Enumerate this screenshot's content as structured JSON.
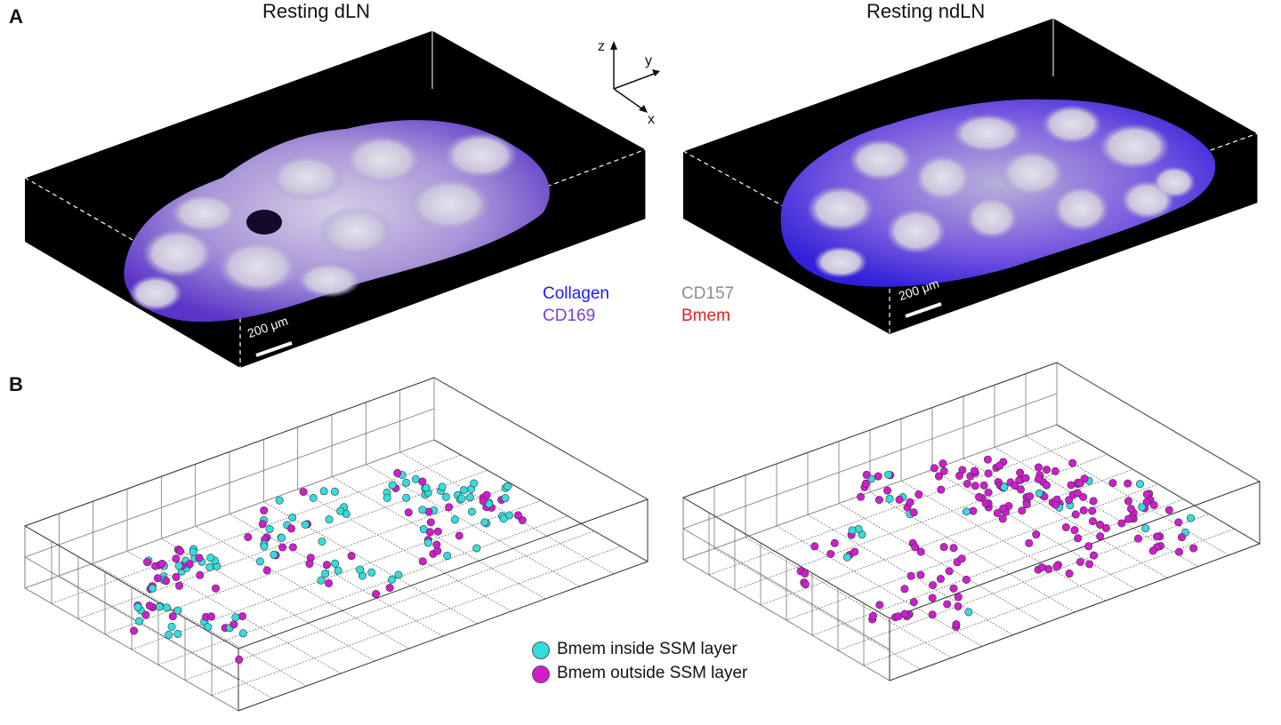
{
  "panel_a": {
    "letter": "A",
    "left_title": "Resting dLN",
    "right_title": "Resting ndLN",
    "scale_bar_left": "200 μm",
    "scale_bar_right": "200 μm",
    "axes": {
      "z": "z",
      "y": "y",
      "x": "x"
    },
    "channel_legend": [
      {
        "label": "Collagen",
        "color": "#1a1aff"
      },
      {
        "label": "CD157",
        "color": "#8c8c8c"
      },
      {
        "label": "CD169",
        "color": "#7b3fd6"
      },
      {
        "label": "Bmem",
        "color": "#e0201e"
      }
    ]
  },
  "panel_b": {
    "letter": "B",
    "legend": [
      {
        "label": "Bmem inside SSM layer",
        "color": "#33dddd"
      },
      {
        "label": "Bmem outside SSM layer",
        "color": "#d11ccf"
      }
    ]
  },
  "colors": {
    "collagen": "#1a1aff",
    "cd157": "#8c8c8c",
    "cd169": "#7b3fd6",
    "bmem": "#e0201e",
    "inside": "#33dddd",
    "outside": "#d11ccf"
  }
}
